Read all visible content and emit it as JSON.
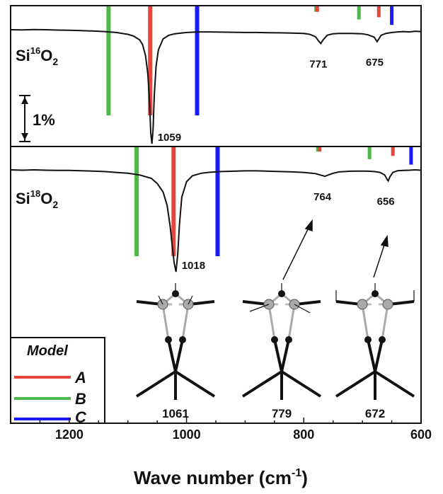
{
  "chart_data": {
    "type": "line",
    "xlabel_main": "Wave number (cm",
    "xlabel_sup": "-1",
    "xlabel_end": ")",
    "xlim": [
      1300,
      600
    ],
    "x_ticks": [
      {
        "value": 1200,
        "label": "1200"
      },
      {
        "value": 1000,
        "label": "1000"
      },
      {
        "value": 800,
        "label": "800"
      },
      {
        "value": 600,
        "label": "600"
      }
    ],
    "scale_bar": {
      "label": "1%"
    },
    "panels": [
      {
        "isotope_label": {
          "base": "Si",
          "mass": "16",
          "element": "O",
          "count": "2"
        },
        "spectrum_x": [
          1300,
          1280,
          1260,
          1240,
          1220,
          1200,
          1180,
          1160,
          1140,
          1120,
          1100,
          1090,
          1080,
          1075,
          1070,
          1066,
          1063,
          1061,
          1059,
          1057,
          1055,
          1052,
          1048,
          1040,
          1030,
          1020,
          1000,
          980,
          960,
          940,
          920,
          900,
          880,
          860,
          840,
          820,
          800,
          790,
          780,
          775,
          771,
          767,
          760,
          750,
          740,
          720,
          700,
          690,
          680,
          677,
          675,
          672,
          668,
          660,
          650,
          640,
          630,
          620,
          610,
          600
        ],
        "spectrum_y": [
          0,
          0.01,
          -0.01,
          0.0,
          0.02,
          0.03,
          0.05,
          0.07,
          0.1,
          0.15,
          0.25,
          0.35,
          0.55,
          0.8,
          1.4,
          2.4,
          4.0,
          5.6,
          6.2,
          5.4,
          3.6,
          2.0,
          1.1,
          0.5,
          0.3,
          0.22,
          0.15,
          0.12,
          0.12,
          0.13,
          0.14,
          0.15,
          0.15,
          0.16,
          0.17,
          0.18,
          0.2,
          0.25,
          0.38,
          0.6,
          0.75,
          0.55,
          0.3,
          0.22,
          0.2,
          0.2,
          0.22,
          0.28,
          0.4,
          0.55,
          0.65,
          0.5,
          0.3,
          0.2,
          0.15,
          0.12,
          0.1,
          0.12,
          0.08,
          0.1
        ],
        "peaks": [
          {
            "x": 1059,
            "label": "1059"
          },
          {
            "x": 771,
            "label": "771"
          },
          {
            "x": 675,
            "label": "675"
          }
        ],
        "model_sticks": [
          {
            "model": "B",
            "x": 1133,
            "intensity": 1.0
          },
          {
            "model": "A",
            "x": 1062,
            "intensity": 1.0
          },
          {
            "model": "C",
            "x": 982,
            "intensity": 1.0
          },
          {
            "model": "B",
            "x": 779,
            "intensity": 0.05
          },
          {
            "model": "A",
            "x": 777,
            "intensity": 0.05
          },
          {
            "model": "B",
            "x": 706,
            "intensity": 0.12
          },
          {
            "model": "A",
            "x": 672,
            "intensity": 0.1
          },
          {
            "model": "C",
            "x": 650,
            "intensity": 0.17
          }
        ]
      },
      {
        "isotope_label": {
          "base": "Si",
          "mass": "18",
          "element": "O",
          "count": "2"
        },
        "spectrum_x": [
          1300,
          1280,
          1260,
          1240,
          1220,
          1200,
          1180,
          1160,
          1140,
          1120,
          1100,
          1080,
          1060,
          1050,
          1040,
          1033,
          1028,
          1024,
          1021,
          1018,
          1015,
          1012,
          1008,
          1000,
          990,
          975,
          960,
          940,
          920,
          900,
          880,
          860,
          840,
          820,
          800,
          780,
          770,
          764,
          758,
          750,
          740,
          720,
          700,
          690,
          680,
          670,
          662,
          658,
          656,
          653,
          648,
          640,
          630,
          620,
          610,
          600
        ],
        "spectrum_y": [
          0,
          0.02,
          0.0,
          0.02,
          0.03,
          0.03,
          0.05,
          0.07,
          0.1,
          0.15,
          0.2,
          0.3,
          0.5,
          0.8,
          1.3,
          2.1,
          3.3,
          4.6,
          5.5,
          6.0,
          5.0,
          3.2,
          1.6,
          0.7,
          0.35,
          0.2,
          0.14,
          0.1,
          0.08,
          0.06,
          0.06,
          0.08,
          0.1,
          0.12,
          0.15,
          0.22,
          0.32,
          0.38,
          0.3,
          0.2,
          0.12,
          0.08,
          0.07,
          0.08,
          0.1,
          0.15,
          0.3,
          0.55,
          0.65,
          0.4,
          0.15,
          0.05,
          0.03,
          0.02,
          0.0,
          0.02
        ],
        "peaks": [
          {
            "x": 1018,
            "label": "1018"
          },
          {
            "x": 764,
            "label": "764"
          },
          {
            "x": 656,
            "label": "656"
          }
        ],
        "model_sticks": [
          {
            "model": "B",
            "x": 1085,
            "intensity": 1.0
          },
          {
            "model": "A",
            "x": 1022,
            "intensity": 1.0
          },
          {
            "model": "C",
            "x": 947,
            "intensity": 1.0
          },
          {
            "model": "B",
            "x": 776,
            "intensity": 0.04
          },
          {
            "model": "A",
            "x": 773,
            "intensity": 0.04
          },
          {
            "model": "B",
            "x": 688,
            "intensity": 0.11
          },
          {
            "model": "A",
            "x": 648,
            "intensity": 0.08
          },
          {
            "model": "C",
            "x": 617,
            "intensity": 0.16
          }
        ]
      }
    ]
  },
  "legend": {
    "title": "Model",
    "entries": [
      {
        "label": "A",
        "color": "#e8463c"
      },
      {
        "label": "B",
        "color": "#4cb848"
      },
      {
        "label": "C",
        "color": "#1a1aff"
      }
    ]
  },
  "mode_insets": [
    {
      "label": "1061"
    },
    {
      "label": "779"
    },
    {
      "label": "672"
    }
  ],
  "colors": {
    "A": "#e8463c",
    "B": "#4cb848",
    "C": "#1a1aff",
    "spectrum": "#111111"
  }
}
